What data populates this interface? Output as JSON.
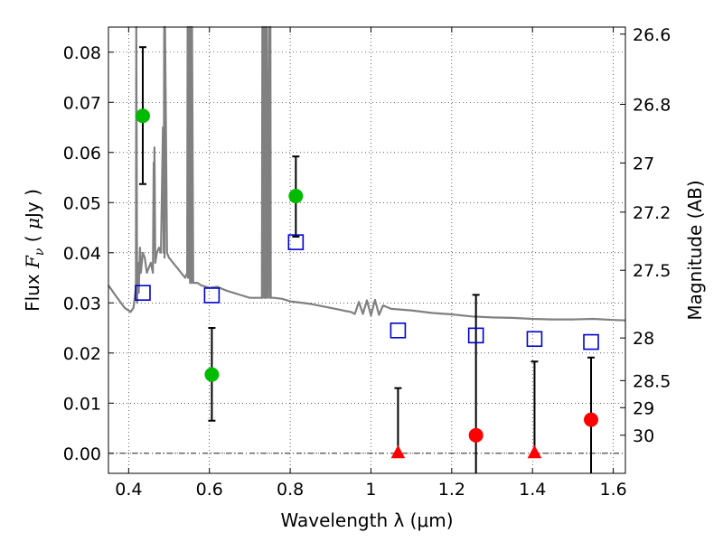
{
  "chart_data": {
    "type": "scatter",
    "title": "",
    "xlabel": "Wavelength  λ (μm)",
    "ylabel": "Flux  Fν  ( μJy )",
    "y2label": "Magnitude (AB)",
    "xlim": [
      0.35,
      1.63
    ],
    "ylim": [
      -0.004,
      0.085
    ],
    "grid": true,
    "x_ticks": [
      {
        "value": 0.4,
        "label": "0.4"
      },
      {
        "value": 0.6,
        "label": "0.6"
      },
      {
        "value": 0.8,
        "label": "0.8"
      },
      {
        "value": 1.0,
        "label": "1"
      },
      {
        "value": 1.2,
        "label": "1.2"
      },
      {
        "value": 1.4,
        "label": "1.4"
      },
      {
        "value": 1.6,
        "label": "1.6"
      }
    ],
    "y_ticks": [
      {
        "value": 0.0,
        "label": "0.00"
      },
      {
        "value": 0.01,
        "label": "0.01"
      },
      {
        "value": 0.02,
        "label": "0.02"
      },
      {
        "value": 0.03,
        "label": "0.03"
      },
      {
        "value": 0.04,
        "label": "0.04"
      },
      {
        "value": 0.05,
        "label": "0.05"
      },
      {
        "value": 0.06,
        "label": "0.06"
      },
      {
        "value": 0.07,
        "label": "0.07"
      },
      {
        "value": 0.08,
        "label": "0.08"
      }
    ],
    "y2_ticks": [
      {
        "label": "26.6",
        "flux": 0.0836
      },
      {
        "label": "26.8",
        "flux": 0.0696
      },
      {
        "label": "27",
        "flux": 0.0579
      },
      {
        "label": "27.2",
        "flux": 0.0481
      },
      {
        "label": "27.5",
        "flux": 0.0365
      },
      {
        "label": "28",
        "flux": 0.023
      },
      {
        "label": "28.5",
        "flux": 0.0145
      },
      {
        "label": "29",
        "flux": 0.0091
      },
      {
        "label": "30",
        "flux": 0.0036
      }
    ],
    "colors": {
      "detected": "#00bb00",
      "undetected": "#ff0000",
      "model": "#0000cc",
      "template": "#808080",
      "errorbar": "#000000"
    },
    "series": [
      {
        "marker": "circle",
        "color": "#00bb00",
        "points": [
          {
            "x": 0.435,
            "y": 0.0673,
            "ylow": 0.0537,
            "yhigh": 0.081
          },
          {
            "x": 0.606,
            "y": 0.0157,
            "ylow": 0.0065,
            "yhigh": 0.025
          },
          {
            "x": 0.814,
            "y": 0.0513,
            "ylow": 0.0432,
            "yhigh": 0.0592
          }
        ]
      },
      {
        "marker": "triangle",
        "color": "#ff0000",
        "points": [
          {
            "x": 1.067,
            "y": 0.0,
            "ylow": 0.0,
            "yhigh": 0.013
          },
          {
            "x": 1.405,
            "y": 0.0,
            "ylow": 0.0,
            "yhigh": 0.0183
          }
        ]
      },
      {
        "marker": "circle",
        "color": "#ff0000",
        "points": [
          {
            "x": 1.26,
            "y": 0.0036,
            "ylow": -0.004,
            "yhigh": 0.0316
          },
          {
            "x": 1.545,
            "y": 0.0067,
            "ylow": -0.004,
            "yhigh": 0.0191
          }
        ]
      },
      {
        "marker": "square",
        "color": "#0000cc",
        "points": [
          {
            "x": 0.435,
            "y": 0.032
          },
          {
            "x": 0.606,
            "y": 0.0315
          },
          {
            "x": 0.814,
            "y": 0.0421
          },
          {
            "x": 1.067,
            "y": 0.0245
          },
          {
            "x": 1.26,
            "y": 0.0235
          },
          {
            "x": 1.405,
            "y": 0.0228
          },
          {
            "x": 1.545,
            "y": 0.0222
          }
        ]
      }
    ],
    "template_spectrum": {
      "color": "#808080",
      "x": [
        0.35,
        0.37,
        0.39,
        0.405,
        0.412,
        0.418,
        0.419,
        0.421,
        0.423,
        0.425,
        0.428,
        0.43,
        0.435,
        0.44,
        0.445,
        0.45,
        0.455,
        0.46,
        0.462,
        0.463,
        0.464,
        0.466,
        0.47,
        0.475,
        0.48,
        0.485,
        0.487,
        0.488,
        0.489,
        0.49,
        0.495,
        0.5,
        0.51,
        0.52,
        0.53,
        0.54,
        0.545,
        0.546,
        0.547,
        0.548,
        0.549,
        0.55,
        0.552,
        0.553,
        0.554,
        0.555,
        0.556,
        0.557,
        0.56,
        0.57,
        0.58,
        0.6,
        0.62,
        0.64,
        0.66,
        0.68,
        0.7,
        0.72,
        0.73,
        0.731,
        0.732,
        0.735,
        0.737,
        0.738,
        0.74,
        0.742,
        0.745,
        0.748,
        0.75,
        0.751,
        0.752,
        0.755,
        0.76,
        0.78,
        0.8,
        0.85,
        0.9,
        0.93,
        0.95,
        0.96,
        0.97,
        0.98,
        0.99,
        1.0,
        1.01,
        1.02,
        1.03,
        1.05,
        1.1,
        1.15,
        1.2,
        1.25,
        1.3,
        1.35,
        1.4,
        1.45,
        1.5,
        1.55,
        1.6,
        1.63
      ],
      "y": [
        0.0335,
        0.0312,
        0.029,
        0.0282,
        0.029,
        0.033,
        0.085,
        0.03,
        0.038,
        0.032,
        0.041,
        0.036,
        0.04,
        0.039,
        0.036,
        0.037,
        0.038,
        0.036,
        0.058,
        0.041,
        0.061,
        0.038,
        0.04,
        0.041,
        0.04,
        0.065,
        0.04,
        0.085,
        0.039,
        0.085,
        0.04,
        0.039,
        0.038,
        0.037,
        0.036,
        0.035,
        0.036,
        0.085,
        0.035,
        0.085,
        0.035,
        0.085,
        0.034,
        0.085,
        0.034,
        0.085,
        0.034,
        0.085,
        0.034,
        0.034,
        0.0335,
        0.033,
        0.0332,
        0.0325,
        0.032,
        0.0315,
        0.031,
        0.031,
        0.031,
        0.085,
        0.031,
        0.085,
        0.031,
        0.085,
        0.031,
        0.085,
        0.031,
        0.085,
        0.031,
        0.085,
        0.031,
        0.031,
        0.031,
        0.0308,
        0.0303,
        0.0298,
        0.029,
        0.0285,
        0.0282,
        0.0278,
        0.0302,
        0.0278,
        0.0305,
        0.0275,
        0.0306,
        0.0276,
        0.0295,
        0.0288,
        0.0285,
        0.028,
        0.0277,
        0.0273,
        0.0271,
        0.027,
        0.0268,
        0.0267,
        0.0267,
        0.0268,
        0.0266,
        0.0265
      ]
    }
  }
}
